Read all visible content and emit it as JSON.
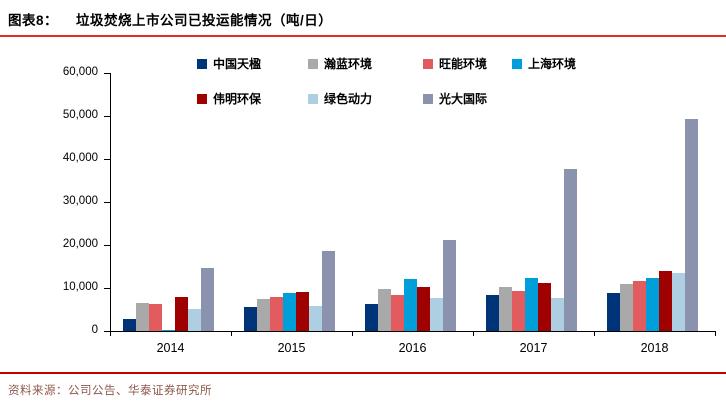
{
  "header": {
    "figure_label": "图表8：",
    "title": "垃圾焚烧上市公司已投运能情况（吨/日）"
  },
  "footer": {
    "source": "资料来源：公司公告、华泰证券研究所"
  },
  "accent_colors": {
    "top_rule": "#e0301e",
    "bottom_rule": "#c00000",
    "source_text": "#8c584c"
  },
  "chart_data": {
    "type": "bar",
    "title": "垃圾焚烧上市公司已投运能情况（吨/日）",
    "categories": [
      "2014",
      "2015",
      "2016",
      "2017",
      "2018"
    ],
    "series": [
      {
        "name": "中国天楹",
        "color": "#003478",
        "values": [
          2900,
          5500,
          6300,
          8400,
          8800
        ]
      },
      {
        "name": "瀚蓝环境",
        "color": "#a9a9a9",
        "values": [
          6600,
          7400,
          9700,
          10300,
          11000
        ]
      },
      {
        "name": "旺能环境",
        "color": "#e25b5e",
        "values": [
          6200,
          7900,
          8300,
          9300,
          11700
        ]
      },
      {
        "name": "上海环境",
        "color": "#009fd9",
        "values": [
          300,
          8800,
          12200,
          12300,
          12400
        ]
      },
      {
        "name": "伟明环保",
        "color": "#9f0000",
        "values": [
          7900,
          9100,
          10300,
          11100,
          13900
        ]
      },
      {
        "name": "绿色动力",
        "color": "#aecfe2",
        "values": [
          5100,
          5800,
          7600,
          7700,
          13400
        ]
      },
      {
        "name": "光大国际",
        "color": "#8a92ad",
        "values": [
          14600,
          18500,
          21200,
          37600,
          49300
        ]
      }
    ],
    "ylim": [
      0,
      60000
    ],
    "ytick_step": 10000,
    "ytick_labels": [
      "0",
      "10,000",
      "20,000",
      "30,000",
      "40,000",
      "50,000",
      "60,000"
    ],
    "legend_position": "top",
    "legend_rows": [
      [
        "中国天楹",
        "瀚蓝环境",
        "旺能环境",
        "上海环境"
      ],
      [
        "伟明环保",
        "绿色动力",
        "光大国际"
      ]
    ],
    "grid": false
  }
}
